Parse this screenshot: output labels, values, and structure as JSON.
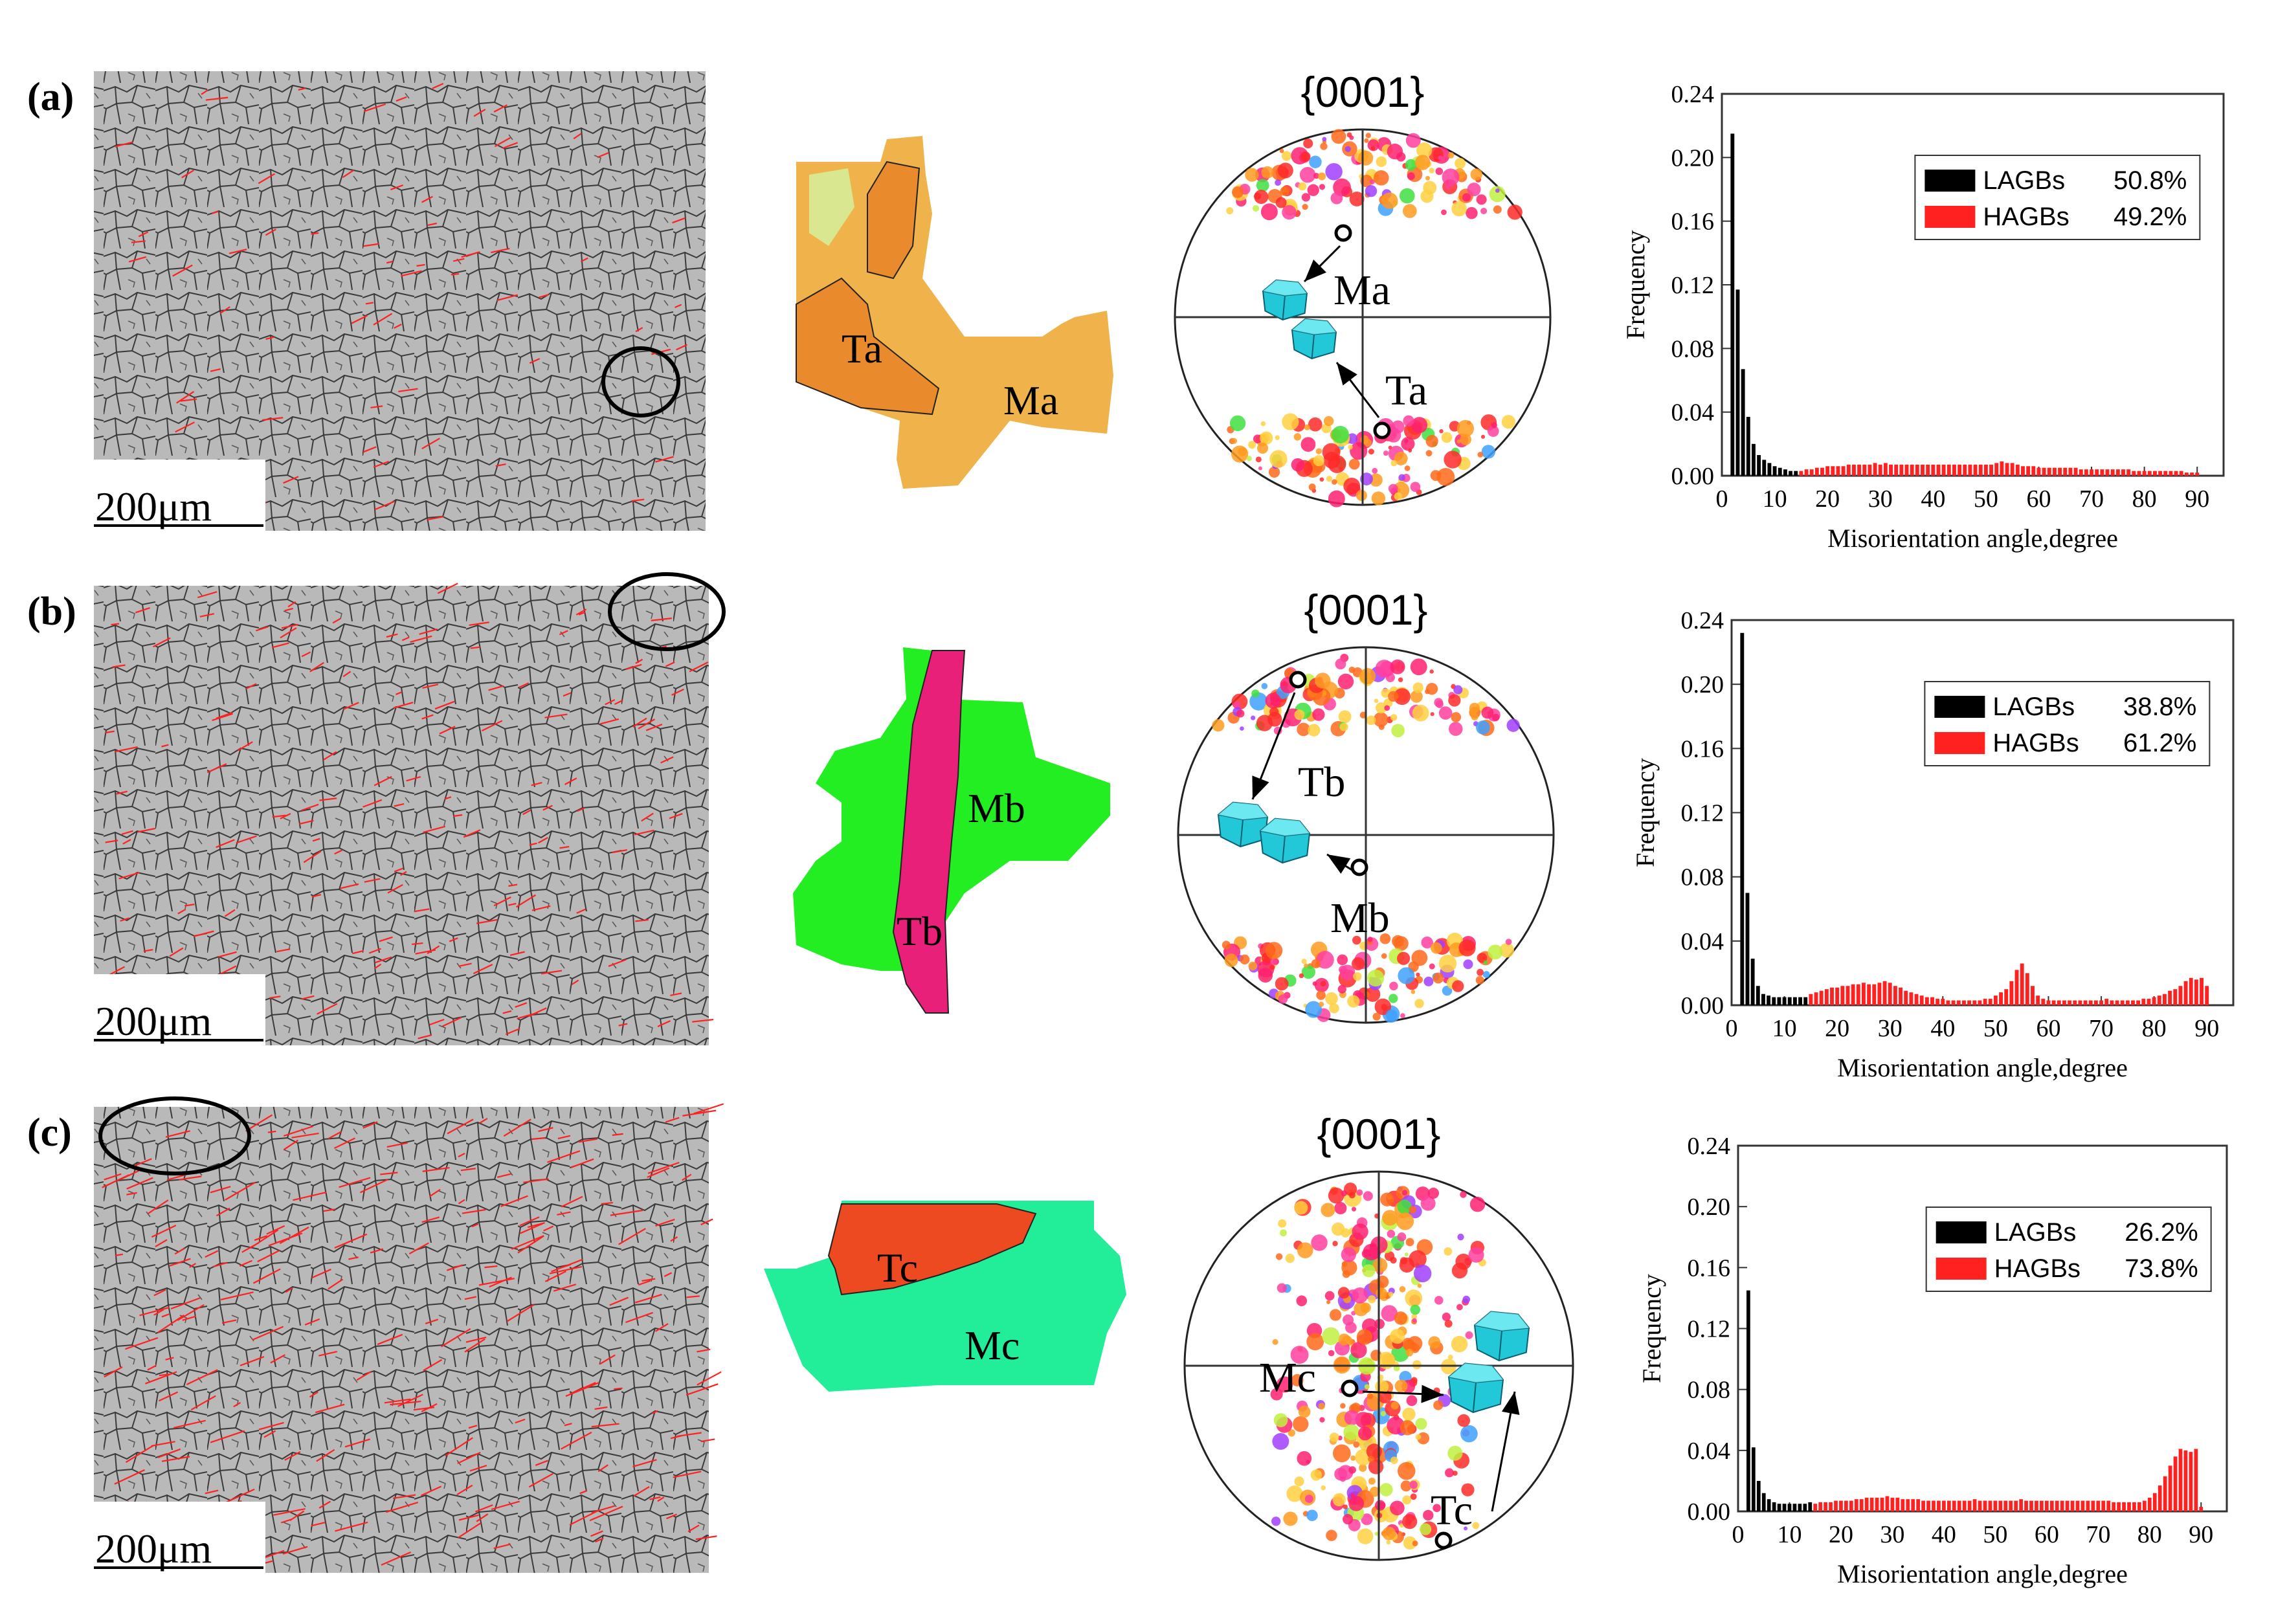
{
  "figure": {
    "panels": [
      {
        "label": "(a)",
        "scale_bar": "200μm",
        "pole_figure_title": "{0001}",
        "twin_label": "Ta",
        "matrix_label": "Ma",
        "matrix_color": "#f0b24a",
        "twin_color": "#e98a2c"
      },
      {
        "label": "(b)",
        "scale_bar": "200μm",
        "pole_figure_title": "{0001}",
        "twin_label": "Tb",
        "matrix_label": "Mb",
        "matrix_color": "#22ee22",
        "twin_color": "#e8207a"
      },
      {
        "label": "(c)",
        "scale_bar": "200μm",
        "pole_figure_title": "{0001}",
        "twin_label": "Tc",
        "matrix_label": "Mc",
        "matrix_color": "#22ee99",
        "twin_color": "#ee4a22"
      }
    ],
    "colors": {
      "lagb": "#000000",
      "hagb": "#ff2020",
      "map_gray": "#b9b9b9",
      "axis": "#333333",
      "twin_cyan": "#22c8d8"
    }
  },
  "chart_data": [
    {
      "type": "bar",
      "panel": "a",
      "xlabel": "Misorientation angle,degree",
      "ylabel": "Frequency",
      "xlim": [
        0,
        95
      ],
      "ylim": [
        0,
        0.24
      ],
      "xticks": [
        0,
        10,
        20,
        30,
        40,
        50,
        60,
        70,
        80,
        90
      ],
      "xtick_labels": [
        "0",
        "10",
        "20",
        "30",
        "40",
        "50",
        "60",
        "70",
        "80",
        "90"
      ],
      "yticks": [
        0,
        0.04,
        0.08,
        0.12,
        0.16,
        0.2,
        0.24
      ],
      "ytick_labels": [
        "0.00",
        "0.04",
        "0.08",
        "0.12",
        "0.16",
        "0.20",
        "0.24"
      ],
      "bin_width": 1,
      "legend": [
        {
          "name": "LAGBs",
          "value": "50.8%"
        },
        {
          "name": "HAGBs",
          "value": "49.2%"
        }
      ],
      "series": [
        {
          "name": "LAGBs",
          "x": [
            2,
            3,
            4,
            5,
            6,
            7,
            8,
            9,
            10,
            11,
            12,
            13,
            14
          ],
          "values": [
            0.215,
            0.117,
            0.067,
            0.037,
            0.02,
            0.013,
            0.01,
            0.008,
            0.006,
            0.005,
            0.004,
            0.003,
            0.003
          ]
        },
        {
          "name": "HAGBs",
          "x": [
            15,
            16,
            17,
            18,
            19,
            20,
            21,
            22,
            23,
            24,
            25,
            26,
            27,
            28,
            29,
            30,
            31,
            32,
            33,
            34,
            35,
            36,
            37,
            38,
            39,
            40,
            41,
            42,
            43,
            44,
            45,
            46,
            47,
            48,
            49,
            50,
            51,
            52,
            53,
            54,
            55,
            56,
            57,
            58,
            59,
            60,
            61,
            62,
            63,
            64,
            65,
            66,
            67,
            68,
            69,
            70,
            71,
            72,
            73,
            74,
            75,
            76,
            77,
            78,
            79,
            80,
            81,
            82,
            83,
            84,
            85,
            86,
            87,
            88,
            89,
            90
          ],
          "values": [
            0.003,
            0.004,
            0.004,
            0.005,
            0.005,
            0.006,
            0.006,
            0.006,
            0.006,
            0.007,
            0.007,
            0.007,
            0.007,
            0.007,
            0.008,
            0.007,
            0.008,
            0.007,
            0.007,
            0.007,
            0.007,
            0.007,
            0.007,
            0.007,
            0.007,
            0.007,
            0.007,
            0.007,
            0.007,
            0.007,
            0.007,
            0.007,
            0.007,
            0.007,
            0.007,
            0.007,
            0.007,
            0.008,
            0.009,
            0.008,
            0.008,
            0.007,
            0.006,
            0.006,
            0.006,
            0.005,
            0.005,
            0.005,
            0.005,
            0.005,
            0.005,
            0.005,
            0.005,
            0.004,
            0.004,
            0.004,
            0.004,
            0.004,
            0.004,
            0.004,
            0.004,
            0.004,
            0.004,
            0.003,
            0.003,
            0.003,
            0.003,
            0.003,
            0.003,
            0.003,
            0.003,
            0.003,
            0.003,
            0.002,
            0.002,
            0.002
          ]
        }
      ]
    },
    {
      "type": "bar",
      "panel": "b",
      "xlabel": "Misorientation angle,degree",
      "ylabel": "Frequency",
      "xlim": [
        0,
        95
      ],
      "ylim": [
        0,
        0.24
      ],
      "xticks": [
        0,
        10,
        20,
        30,
        40,
        50,
        60,
        70,
        80,
        90
      ],
      "xtick_labels": [
        "0",
        "10",
        "20",
        "30",
        "40",
        "50",
        "60",
        "70",
        "80",
        "90"
      ],
      "yticks": [
        0,
        0.04,
        0.08,
        0.12,
        0.16,
        0.2,
        0.24
      ],
      "ytick_labels": [
        "0.00",
        "0.04",
        "0.08",
        "0.12",
        "0.16",
        "0.20",
        "0.24"
      ],
      "bin_width": 1,
      "legend": [
        {
          "name": "LAGBs",
          "value": "38.8%"
        },
        {
          "name": "HAGBs",
          "value": "61.2%"
        }
      ],
      "series": [
        {
          "name": "LAGBs",
          "x": [
            2,
            3,
            4,
            5,
            6,
            7,
            8,
            9,
            10,
            11,
            12,
            13,
            14
          ],
          "values": [
            0.232,
            0.07,
            0.029,
            0.012,
            0.007,
            0.006,
            0.005,
            0.005,
            0.005,
            0.005,
            0.005,
            0.005,
            0.005
          ]
        },
        {
          "name": "HAGBs",
          "x": [
            15,
            16,
            17,
            18,
            19,
            20,
            21,
            22,
            23,
            24,
            25,
            26,
            27,
            28,
            29,
            30,
            31,
            32,
            33,
            34,
            35,
            36,
            37,
            38,
            39,
            40,
            41,
            42,
            43,
            44,
            45,
            46,
            47,
            48,
            49,
            50,
            51,
            52,
            53,
            54,
            55,
            56,
            57,
            58,
            59,
            60,
            61,
            62,
            63,
            64,
            65,
            66,
            67,
            68,
            69,
            70,
            71,
            72,
            73,
            74,
            75,
            76,
            77,
            78,
            79,
            80,
            81,
            82,
            83,
            84,
            85,
            86,
            87,
            88,
            89,
            90
          ],
          "values": [
            0.007,
            0.008,
            0.009,
            0.01,
            0.011,
            0.011,
            0.012,
            0.012,
            0.013,
            0.013,
            0.014,
            0.013,
            0.013,
            0.014,
            0.015,
            0.014,
            0.012,
            0.011,
            0.009,
            0.008,
            0.007,
            0.006,
            0.005,
            0.005,
            0.004,
            0.004,
            0.003,
            0.003,
            0.003,
            0.003,
            0.003,
            0.003,
            0.003,
            0.004,
            0.004,
            0.006,
            0.008,
            0.01,
            0.015,
            0.022,
            0.026,
            0.02,
            0.012,
            0.006,
            0.004,
            0.003,
            0.003,
            0.003,
            0.003,
            0.003,
            0.003,
            0.003,
            0.003,
            0.003,
            0.003,
            0.003,
            0.004,
            0.003,
            0.003,
            0.003,
            0.003,
            0.003,
            0.003,
            0.004,
            0.004,
            0.005,
            0.006,
            0.007,
            0.009,
            0.01,
            0.012,
            0.015,
            0.017,
            0.016,
            0.017,
            0.012
          ]
        }
      ]
    },
    {
      "type": "bar",
      "panel": "c",
      "xlabel": "Misorientation angle,degree",
      "ylabel": "Frequency",
      "xlim": [
        0,
        95
      ],
      "ylim": [
        0,
        0.24
      ],
      "xticks": [
        0,
        10,
        20,
        30,
        40,
        50,
        60,
        70,
        80,
        90
      ],
      "xtick_labels": [
        "0",
        "10",
        "20",
        "30",
        "40",
        "50",
        "60",
        "70",
        "80",
        "90"
      ],
      "yticks": [
        0,
        0.04,
        0.08,
        0.12,
        0.16,
        0.2,
        0.24
      ],
      "ytick_labels": [
        "0.00",
        "0.04",
        "0.08",
        "0.12",
        "0.16",
        "0.20",
        "0.24"
      ],
      "bin_width": 1,
      "legend": [
        {
          "name": "LAGBs",
          "value": "26.2%"
        },
        {
          "name": "HAGBs",
          "value": "73.8%"
        }
      ],
      "series": [
        {
          "name": "LAGBs",
          "x": [
            2,
            3,
            4,
            5,
            6,
            7,
            8,
            9,
            10,
            11,
            12,
            13,
            14
          ],
          "values": [
            0.145,
            0.042,
            0.02,
            0.012,
            0.008,
            0.006,
            0.005,
            0.005,
            0.005,
            0.005,
            0.005,
            0.005,
            0.006
          ]
        },
        {
          "name": "HAGBs",
          "x": [
            15,
            16,
            17,
            18,
            19,
            20,
            21,
            22,
            23,
            24,
            25,
            26,
            27,
            28,
            29,
            30,
            31,
            32,
            33,
            34,
            35,
            36,
            37,
            38,
            39,
            40,
            41,
            42,
            43,
            44,
            45,
            46,
            47,
            48,
            49,
            50,
            51,
            52,
            53,
            54,
            55,
            56,
            57,
            58,
            59,
            60,
            61,
            62,
            63,
            64,
            65,
            66,
            67,
            68,
            69,
            70,
            71,
            72,
            73,
            74,
            75,
            76,
            77,
            78,
            79,
            80,
            81,
            82,
            83,
            84,
            85,
            86,
            87,
            88,
            89,
            90
          ],
          "values": [
            0.005,
            0.006,
            0.006,
            0.006,
            0.007,
            0.007,
            0.007,
            0.007,
            0.008,
            0.008,
            0.009,
            0.009,
            0.009,
            0.009,
            0.01,
            0.009,
            0.009,
            0.008,
            0.008,
            0.008,
            0.008,
            0.007,
            0.007,
            0.007,
            0.007,
            0.007,
            0.007,
            0.007,
            0.007,
            0.007,
            0.007,
            0.008,
            0.007,
            0.007,
            0.007,
            0.007,
            0.007,
            0.007,
            0.007,
            0.007,
            0.008,
            0.007,
            0.007,
            0.007,
            0.007,
            0.007,
            0.007,
            0.007,
            0.007,
            0.007,
            0.007,
            0.007,
            0.007,
            0.007,
            0.007,
            0.007,
            0.007,
            0.007,
            0.006,
            0.006,
            0.006,
            0.006,
            0.006,
            0.006,
            0.007,
            0.009,
            0.012,
            0.017,
            0.023,
            0.03,
            0.036,
            0.041,
            0.04,
            0.039,
            0.041,
            0.003
          ]
        }
      ]
    }
  ]
}
